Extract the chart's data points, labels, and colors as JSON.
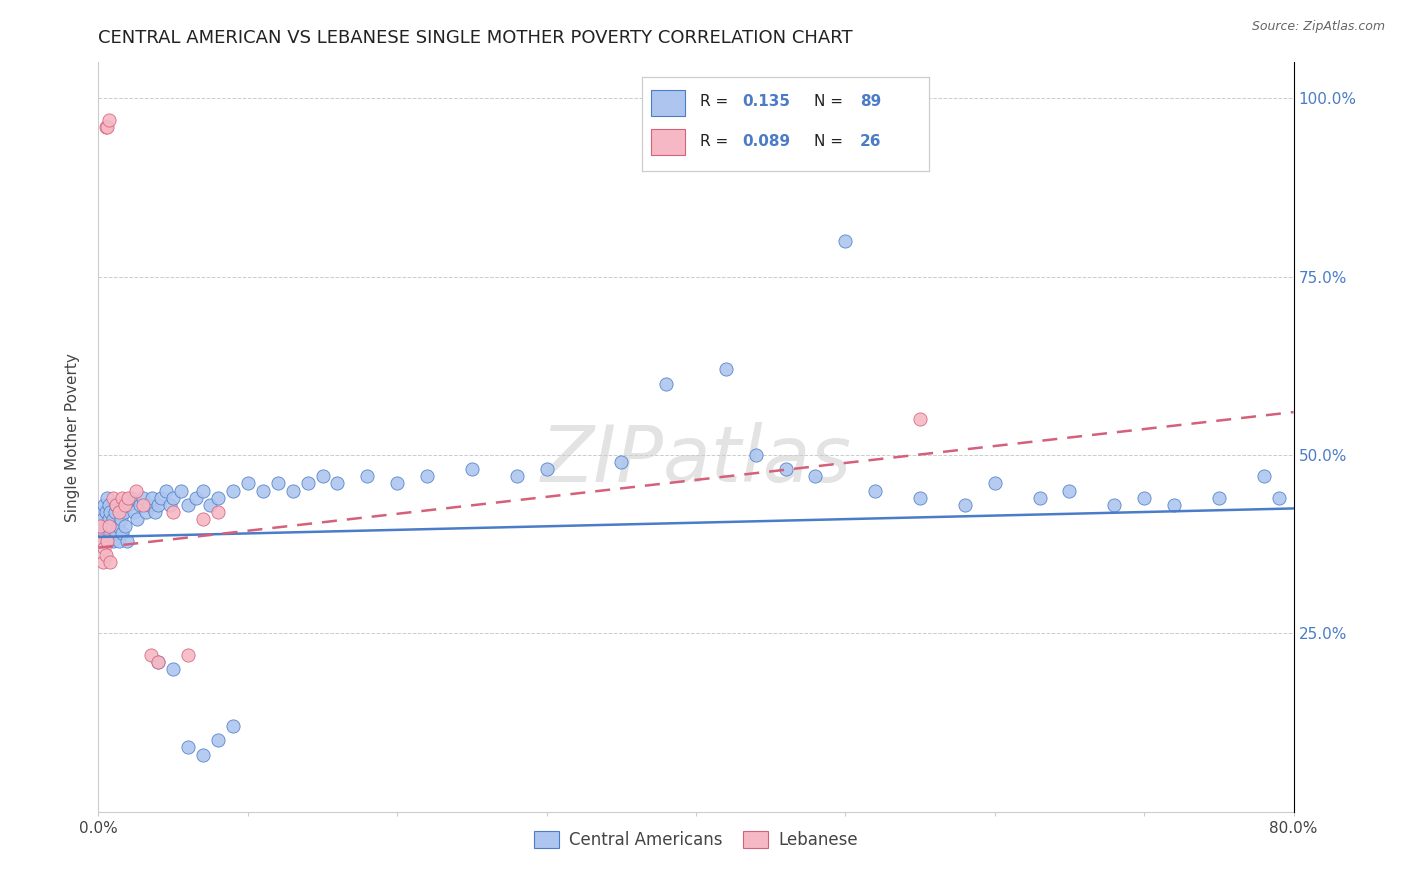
{
  "title": "CENTRAL AMERICAN VS LEBANESE SINGLE MOTHER POVERTY CORRELATION CHART",
  "source": "Source: ZipAtlas.com",
  "ylabel": "Single Mother Poverty",
  "legend_entries": [
    {
      "label": "Central Americans",
      "R": "0.135",
      "N": "89",
      "dot_color": "#aec6ef",
      "line_color": "#4a7cc7"
    },
    {
      "label": "Lebanese",
      "R": "0.089",
      "N": "26",
      "dot_color": "#f5b8c4",
      "line_color": "#d4607a"
    }
  ],
  "watermark": "ZIPatlas",
  "ca_x": [
    0.001,
    0.002,
    0.003,
    0.003,
    0.004,
    0.004,
    0.005,
    0.005,
    0.006,
    0.006,
    0.007,
    0.007,
    0.008,
    0.008,
    0.009,
    0.01,
    0.01,
    0.011,
    0.012,
    0.012,
    0.013,
    0.014,
    0.015,
    0.015,
    0.016,
    0.017,
    0.018,
    0.019,
    0.02,
    0.022,
    0.024,
    0.026,
    0.028,
    0.03,
    0.032,
    0.034,
    0.036,
    0.038,
    0.04,
    0.042,
    0.045,
    0.048,
    0.05,
    0.055,
    0.06,
    0.065,
    0.07,
    0.075,
    0.08,
    0.09,
    0.1,
    0.11,
    0.12,
    0.13,
    0.14,
    0.15,
    0.16,
    0.18,
    0.2,
    0.22,
    0.25,
    0.28,
    0.3,
    0.35,
    0.38,
    0.42,
    0.44,
    0.46,
    0.48,
    0.5,
    0.52,
    0.55,
    0.58,
    0.6,
    0.63,
    0.65,
    0.68,
    0.7,
    0.72,
    0.75,
    0.78,
    0.79,
    0.04,
    0.05,
    0.06,
    0.07,
    0.08,
    0.09
  ],
  "ca_y": [
    0.4,
    0.42,
    0.38,
    0.41,
    0.39,
    0.43,
    0.4,
    0.42,
    0.38,
    0.44,
    0.41,
    0.43,
    0.39,
    0.42,
    0.4,
    0.38,
    0.41,
    0.42,
    0.39,
    0.43,
    0.4,
    0.38,
    0.41,
    0.43,
    0.39,
    0.42,
    0.4,
    0.38,
    0.43,
    0.44,
    0.42,
    0.41,
    0.43,
    0.44,
    0.42,
    0.43,
    0.44,
    0.42,
    0.43,
    0.44,
    0.45,
    0.43,
    0.44,
    0.45,
    0.43,
    0.44,
    0.45,
    0.43,
    0.44,
    0.45,
    0.46,
    0.45,
    0.46,
    0.45,
    0.46,
    0.47,
    0.46,
    0.47,
    0.46,
    0.47,
    0.48,
    0.47,
    0.48,
    0.49,
    0.6,
    0.62,
    0.5,
    0.48,
    0.47,
    0.8,
    0.45,
    0.44,
    0.43,
    0.46,
    0.44,
    0.45,
    0.43,
    0.44,
    0.43,
    0.44,
    0.47,
    0.44,
    0.21,
    0.2,
    0.09,
    0.08,
    0.1,
    0.12
  ],
  "leb_x": [
    0.001,
    0.002,
    0.003,
    0.004,
    0.005,
    0.006,
    0.007,
    0.008,
    0.01,
    0.012,
    0.014,
    0.016,
    0.018,
    0.02,
    0.025,
    0.03,
    0.035,
    0.04,
    0.05,
    0.06,
    0.07,
    0.08,
    0.005,
    0.006,
    0.007,
    0.55
  ],
  "leb_y": [
    0.4,
    0.38,
    0.35,
    0.37,
    0.36,
    0.38,
    0.4,
    0.35,
    0.44,
    0.43,
    0.42,
    0.44,
    0.43,
    0.44,
    0.45,
    0.43,
    0.22,
    0.21,
    0.42,
    0.22,
    0.41,
    0.42,
    0.96,
    0.96,
    0.97,
    0.55
  ],
  "ca_trend": [
    0.0,
    0.8,
    0.385,
    0.425
  ],
  "leb_trend": [
    0.0,
    0.8,
    0.37,
    0.56
  ],
  "xlim": [
    0.0,
    0.8
  ],
  "ylim": [
    0.0,
    1.05
  ],
  "y_ticks": [
    0.0,
    0.25,
    0.5,
    0.75,
    1.0
  ],
  "y_tick_labels": [
    "",
    "25.0%",
    "50.0%",
    "75.0%",
    "100.0%"
  ],
  "x_ticks": [
    0.0,
    0.1,
    0.2,
    0.3,
    0.4,
    0.5,
    0.6,
    0.7,
    0.8
  ],
  "x_tick_labels": [
    "0.0%",
    "",
    "",
    "",
    "",
    "",
    "",
    "",
    "80.0%"
  ],
  "fig_width": 14.06,
  "fig_height": 8.92,
  "dpi": 100
}
